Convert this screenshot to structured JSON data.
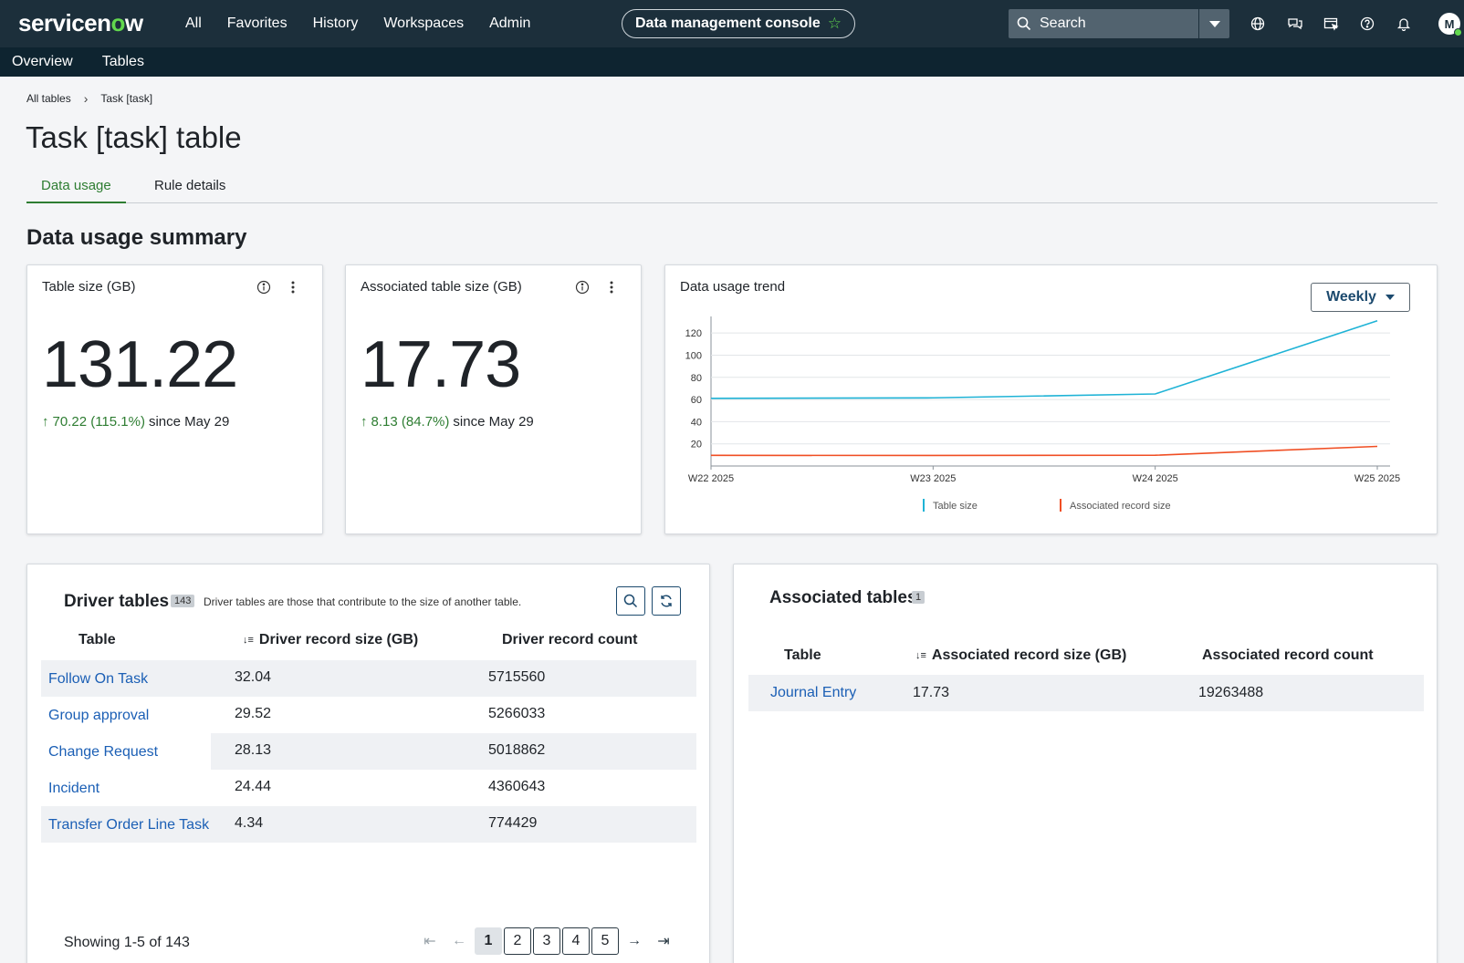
{
  "topnav": {
    "logo_pre": "servicen",
    "logo_o": "o",
    "logo_post": "w",
    "links": [
      "All",
      "Favorites",
      "History",
      "Workspaces",
      "Admin"
    ],
    "console_title": "Data management console",
    "search_placeholder": "Search",
    "icons": [
      "globe-icon",
      "chat-icon",
      "screen-icon",
      "help-icon",
      "bell-icon"
    ],
    "avatar_initial": "M"
  },
  "subnav": {
    "items": [
      "Overview",
      "Tables"
    ]
  },
  "breadcrumb": {
    "root": "All tables",
    "current": "Task [task]"
  },
  "page": {
    "title": "Task [task] table"
  },
  "tabs": [
    "Data usage",
    "Rule details"
  ],
  "summary": {
    "title": "Data usage summary",
    "table_size": {
      "title": "Table size (GB)",
      "value": "131.22",
      "delta": "70.22 (115.1%)",
      "since": "since May 29"
    },
    "assoc_size": {
      "title": "Associated table size (GB)",
      "value": "17.73",
      "delta": "8.13 (84.7%)",
      "since": "since May 29"
    },
    "trend": {
      "title": "Data usage trend",
      "period": "Weekly"
    }
  },
  "chart_data": {
    "type": "line",
    "title": "Data usage trend",
    "x": [
      "W22 2025",
      "W23 2025",
      "W24 2025",
      "W25 2025"
    ],
    "yticks": [
      20,
      40,
      60,
      80,
      100,
      120
    ],
    "ylim": [
      0,
      130
    ],
    "grid": true,
    "legend_position": "bottom",
    "series": [
      {
        "name": "Table size",
        "color": "#1fb3d6",
        "values": [
          61,
          61.5,
          65,
          131
        ]
      },
      {
        "name": "Associated record size",
        "color": "#f04e23",
        "values": [
          9.6,
          9.5,
          9.7,
          17.7
        ]
      }
    ]
  },
  "driver": {
    "title": "Driver tables",
    "count": "143",
    "description": "Driver tables are those that contribute to the size of another table.",
    "columns": [
      "Table",
      "Driver record size (GB)",
      "Driver record count"
    ],
    "rows": [
      [
        "Follow On Task",
        "32.04",
        "5715560"
      ],
      [
        "Group approval",
        "29.52",
        "5266033"
      ],
      [
        "Change Request",
        "28.13",
        "5018862"
      ],
      [
        "Incident",
        "24.44",
        "4360643"
      ],
      [
        "Transfer Order Line Task",
        "4.34",
        "774429"
      ]
    ],
    "showing": "Showing 1-5 of 143",
    "pages": [
      "1",
      "2",
      "3",
      "4",
      "5"
    ]
  },
  "associated": {
    "title": "Associated tables",
    "count": "1",
    "columns": [
      "Table",
      "Associated record size (GB)",
      "Associated record count"
    ],
    "rows": [
      [
        "Journal Entry",
        "17.73",
        "19263488"
      ]
    ]
  }
}
